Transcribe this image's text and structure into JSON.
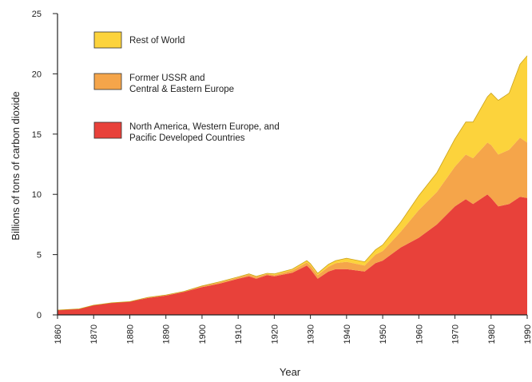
{
  "chart_data": {
    "type": "area",
    "stacked": true,
    "xlabel": "Year",
    "ylabel": "Billions of tons of carbon dioxide",
    "xlim": [
      1860,
      1990
    ],
    "ylim": [
      0,
      25
    ],
    "x_ticks": [
      "1860",
      "1870",
      "1880",
      "1890",
      "1900",
      "1910",
      "1920",
      "1930",
      "1940",
      "1950",
      "1960",
      "1970",
      "1980",
      "1990"
    ],
    "y_ticks": [
      "0",
      "5",
      "10",
      "15",
      "20",
      "25"
    ],
    "grid": false,
    "legend_position": "top-left",
    "series": [
      {
        "name": "North America, Western Europe, and Pacific Developed Countries",
        "color": "#e8413a",
        "x": [
          1860,
          1866,
          1870,
          1875,
          1880,
          1885,
          1890,
          1895,
          1900,
          1905,
          1910,
          1913,
          1915,
          1918,
          1920,
          1925,
          1929,
          1930,
          1932,
          1935,
          1937,
          1940,
          1945,
          1948,
          1950,
          1955,
          1960,
          1965,
          1970,
          1973,
          1975,
          1979,
          1980,
          1982,
          1985,
          1988,
          1990
        ],
        "values": [
          0.4,
          0.5,
          0.8,
          1.0,
          1.1,
          1.4,
          1.6,
          1.9,
          2.3,
          2.6,
          3.0,
          3.2,
          3.0,
          3.3,
          3.2,
          3.5,
          4.1,
          3.8,
          3.0,
          3.6,
          3.8,
          3.8,
          3.6,
          4.3,
          4.5,
          5.6,
          6.4,
          7.5,
          9.0,
          9.6,
          9.2,
          10.0,
          9.7,
          9.0,
          9.2,
          9.8,
          9.7
        ]
      },
      {
        "name": "Former USSR and Central & Eastern Europe",
        "color": "#f5a54a",
        "x": [
          1860,
          1866,
          1870,
          1875,
          1880,
          1885,
          1890,
          1895,
          1900,
          1905,
          1910,
          1913,
          1915,
          1918,
          1920,
          1925,
          1929,
          1930,
          1932,
          1935,
          1937,
          1940,
          1945,
          1948,
          1950,
          1955,
          1960,
          1965,
          1970,
          1973,
          1975,
          1979,
          1980,
          1982,
          1985,
          1988,
          1990
        ],
        "values": [
          0.0,
          0.0,
          0.0,
          0.0,
          0.0,
          0.05,
          0.05,
          0.05,
          0.1,
          0.1,
          0.1,
          0.15,
          0.15,
          0.1,
          0.1,
          0.2,
          0.25,
          0.3,
          0.3,
          0.4,
          0.5,
          0.6,
          0.5,
          0.7,
          0.8,
          1.3,
          2.3,
          2.7,
          3.3,
          3.7,
          3.8,
          4.3,
          4.4,
          4.3,
          4.5,
          4.9,
          4.6
        ]
      },
      {
        "name": "Rest of World",
        "color": "#fcd33c",
        "x": [
          1860,
          1866,
          1870,
          1875,
          1880,
          1885,
          1890,
          1895,
          1900,
          1905,
          1910,
          1913,
          1915,
          1918,
          1920,
          1925,
          1929,
          1930,
          1932,
          1935,
          1937,
          1940,
          1945,
          1948,
          1950,
          1955,
          1960,
          1965,
          1970,
          1973,
          1975,
          1979,
          1980,
          1982,
          1985,
          1988,
          1990
        ],
        "values": [
          0.0,
          0.0,
          0.0,
          0.0,
          0.0,
          0.0,
          0.0,
          0.0,
          0.0,
          0.05,
          0.05,
          0.05,
          0.05,
          0.05,
          0.1,
          0.1,
          0.15,
          0.15,
          0.15,
          0.2,
          0.2,
          0.3,
          0.3,
          0.4,
          0.5,
          0.8,
          1.2,
          1.6,
          2.3,
          2.7,
          3.0,
          3.8,
          4.3,
          4.5,
          4.7,
          6.1,
          7.2
        ]
      }
    ]
  }
}
